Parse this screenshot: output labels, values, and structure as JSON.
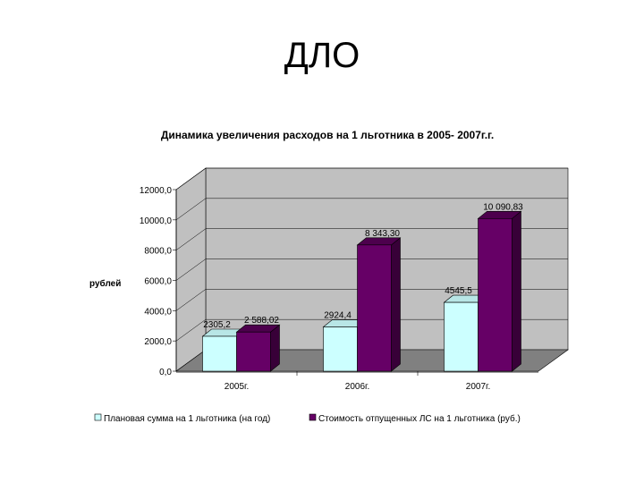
{
  "slide": {
    "title": "ДЛО"
  },
  "colors": {
    "plan": "#ccffff",
    "cost": "#660066",
    "wall": "#c0c0c0",
    "floor": "#808080"
  },
  "chart_data": {
    "type": "bar",
    "title": "Динамика увеличения расходов на 1 льготника в 2005- 2007г.г.",
    "ylabel": "рублей",
    "xlabel": "",
    "categories": [
      "2005г.",
      "2006г.",
      "2007г."
    ],
    "ylim": [
      0,
      12000
    ],
    "yticks": [
      "0,0",
      "2000,0",
      "4000,0",
      "6000,0",
      "8000,0",
      "10000,0",
      "12000,0"
    ],
    "grid": true,
    "three_d": true,
    "legend_position": "bottom",
    "series": [
      {
        "name": "Плановая сумма на 1 льготника (на год)",
        "values": [
          2305.2,
          2924.4,
          4545.5
        ],
        "labels": [
          "2305,2",
          "2924,4",
          "4545,5"
        ]
      },
      {
        "name": "Стоимость отпущенных ЛС на 1 льготника (руб.)",
        "values": [
          2588.02,
          8343.3,
          10090.83
        ],
        "labels": [
          "2 588,02",
          "8 343,30",
          "10 090,83"
        ]
      }
    ]
  }
}
